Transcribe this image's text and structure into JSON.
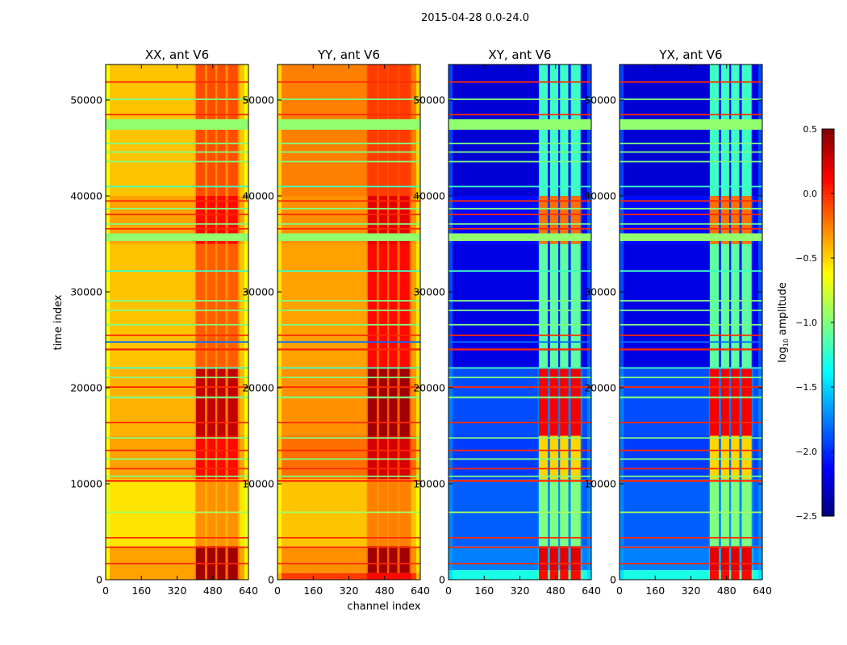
{
  "figure_title": "2015-04-28 0.0-24.0",
  "chart_data": {
    "type": "heatmap",
    "xlabel": "channel index",
    "ylabel": "time index",
    "xlim": [
      0,
      640
    ],
    "ylim": [
      0,
      53700
    ],
    "xticks": [
      0,
      160,
      320,
      480,
      640
    ],
    "yticks": [
      0,
      10000,
      20000,
      30000,
      40000,
      50000
    ],
    "colormap": "jet",
    "colorbar": {
      "label_base": "log",
      "label_sub": "10",
      "label_rest": " amplitude",
      "range": [
        -2.5,
        0.5
      ],
      "ticks": [
        -2.5,
        -2.0,
        -1.5,
        -1.0,
        -0.5,
        0.0,
        0.5
      ]
    },
    "rfi_channel_blocks": [
      [
        405,
        445
      ],
      [
        455,
        492
      ],
      [
        500,
        537
      ],
      [
        548,
        592
      ]
    ],
    "panels": [
      {
        "title": "XX, ant V6",
        "edge_value": -0.85,
        "sections": [
          {
            "t": [
              0,
              3500
            ],
            "bg": -0.35,
            "rfi": 0.4
          },
          {
            "t": [
              3500,
              10500
            ],
            "bg": -0.55,
            "rfi": -0.3
          },
          {
            "t": [
              10500,
              15000
            ],
            "bg": -0.35,
            "rfi": 0.1
          },
          {
            "t": [
              15000,
              22000
            ],
            "bg": -0.4,
            "rfi": 0.3
          },
          {
            "t": [
              22000,
              35000
            ],
            "bg": -0.45,
            "rfi": -0.15
          },
          {
            "t": [
              35000,
              40000
            ],
            "bg": -0.35,
            "rfi": 0.1
          },
          {
            "t": [
              40000,
              53700
            ],
            "bg": -0.45,
            "rfi": -0.1
          }
        ]
      },
      {
        "title": "YY, ant V6",
        "edge_value": -0.75,
        "sections": [
          {
            "t": [
              0,
              700
            ],
            "bg": -0.05,
            "rfi": 0.1
          },
          {
            "t": [
              700,
              3500
            ],
            "bg": -0.3,
            "rfi": 0.4
          },
          {
            "t": [
              3500,
              10500
            ],
            "bg": -0.45,
            "rfi": -0.25
          },
          {
            "t": [
              10500,
              15000
            ],
            "bg": -0.2,
            "rfi": 0.25
          },
          {
            "t": [
              15000,
              22000
            ],
            "bg": -0.3,
            "rfi": 0.4
          },
          {
            "t": [
              22000,
              35000
            ],
            "bg": -0.35,
            "rfi": 0.1
          },
          {
            "t": [
              35000,
              40000
            ],
            "bg": -0.3,
            "rfi": 0.2
          },
          {
            "t": [
              40000,
              53700
            ],
            "bg": -0.25,
            "rfi": -0.05
          }
        ]
      },
      {
        "title": "XY, ant V6",
        "edge_value": -1.6,
        "sections": [
          {
            "t": [
              0,
              1000
            ],
            "bg": -1.3,
            "rfi": 0.1
          },
          {
            "t": [
              1000,
              3500
            ],
            "bg": -1.75,
            "rfi": 0.2
          },
          {
            "t": [
              3500,
              10500
            ],
            "bg": -1.85,
            "rfi": -1.0
          },
          {
            "t": [
              10500,
              15000
            ],
            "bg": -1.95,
            "rfi": -0.5
          },
          {
            "t": [
              15000,
              22000
            ],
            "bg": -1.9,
            "rfi": 0.15
          },
          {
            "t": [
              22000,
              35000
            ],
            "bg": -2.2,
            "rfi": -1.1
          },
          {
            "t": [
              35000,
              40000
            ],
            "bg": -2.1,
            "rfi": -0.2
          },
          {
            "t": [
              40000,
              53700
            ],
            "bg": -2.25,
            "rfi": -1.2
          }
        ]
      },
      {
        "title": "YX, ant V6",
        "edge_value": -1.6,
        "sections": [
          {
            "t": [
              0,
              1000
            ],
            "bg": -1.3,
            "rfi": 0.1
          },
          {
            "t": [
              1000,
              3500
            ],
            "bg": -1.75,
            "rfi": 0.2
          },
          {
            "t": [
              3500,
              10500
            ],
            "bg": -1.85,
            "rfi": -1.0
          },
          {
            "t": [
              10500,
              15000
            ],
            "bg": -1.95,
            "rfi": -0.5
          },
          {
            "t": [
              15000,
              22000
            ],
            "bg": -1.9,
            "rfi": 0.15
          },
          {
            "t": [
              22000,
              35000
            ],
            "bg": -2.2,
            "rfi": -1.1
          },
          {
            "t": [
              35000,
              40000
            ],
            "bg": -2.1,
            "rfi": -0.2
          },
          {
            "t": [
              40000,
              53700
            ],
            "bg": -2.25,
            "rfi": -1.2
          }
        ]
      }
    ],
    "flagged_time_bands": [
      {
        "t": [
          1600,
          1750
        ],
        "v": 0.0
      },
      {
        "t": [
          3300,
          3450
        ],
        "v": 0.0
      },
      {
        "t": [
          4300,
          4450
        ],
        "v": 0.0
      },
      {
        "t": [
          6950,
          7100
        ],
        "v": -0.9
      },
      {
        "t": [
          10200,
          10400
        ],
        "v": 0.0
      },
      {
        "t": [
          10700,
          10850
        ],
        "v": -1.0
      },
      {
        "t": [
          11500,
          11650
        ],
        "v": 0.0
      },
      {
        "t": [
          12500,
          12650
        ],
        "v": -1.0
      },
      {
        "t": [
          13400,
          13550
        ],
        "v": 0.0
      },
      {
        "t": [
          14700,
          14850
        ],
        "v": -1.0
      },
      {
        "t": [
          16300,
          16450
        ],
        "v": 0.0
      },
      {
        "t": [
          18900,
          19100
        ],
        "v": -1.0
      },
      {
        "t": [
          20000,
          20150
        ],
        "v": 0.0
      },
      {
        "t": [
          21000,
          21150
        ],
        "v": -1.0
      },
      {
        "t": [
          22000,
          22150
        ],
        "v": -1.2
      },
      {
        "t": [
          23900,
          24100
        ],
        "v": 0.0
      },
      {
        "t": [
          24700,
          24850
        ],
        "v": -1.8
      },
      {
        "t": [
          25400,
          25550
        ],
        "v": 0.0
      },
      {
        "t": [
          26500,
          26650
        ],
        "v": -1.0
      },
      {
        "t": [
          28000,
          28150
        ],
        "v": -1.0
      },
      {
        "t": [
          29000,
          29150
        ],
        "v": -1.0
      },
      {
        "t": [
          32100,
          32250
        ],
        "v": -1.2
      },
      {
        "t": [
          35300,
          36100
        ],
        "v": -0.95
      },
      {
        "t": [
          36500,
          36650
        ],
        "v": 0.0
      },
      {
        "t": [
          37000,
          37150
        ],
        "v": -1.0
      },
      {
        "t": [
          38000,
          38150
        ],
        "v": 0.0
      },
      {
        "t": [
          38600,
          38750
        ],
        "v": -1.0
      },
      {
        "t": [
          39400,
          39550
        ],
        "v": 0.0
      },
      {
        "t": [
          40900,
          41050
        ],
        "v": -1.2
      },
      {
        "t": [
          43500,
          43650
        ],
        "v": -1.0
      },
      {
        "t": [
          44500,
          44650
        ],
        "v": -1.0
      },
      {
        "t": [
          45400,
          45550
        ],
        "v": -1.0
      },
      {
        "t": [
          46900,
          48000
        ],
        "v": -0.95
      },
      {
        "t": [
          48400,
          48550
        ],
        "v": 0.0
      },
      {
        "t": [
          50000,
          50150
        ],
        "v": -1.0
      },
      {
        "t": [
          51800,
          51950
        ],
        "v": 0.0
      }
    ]
  }
}
